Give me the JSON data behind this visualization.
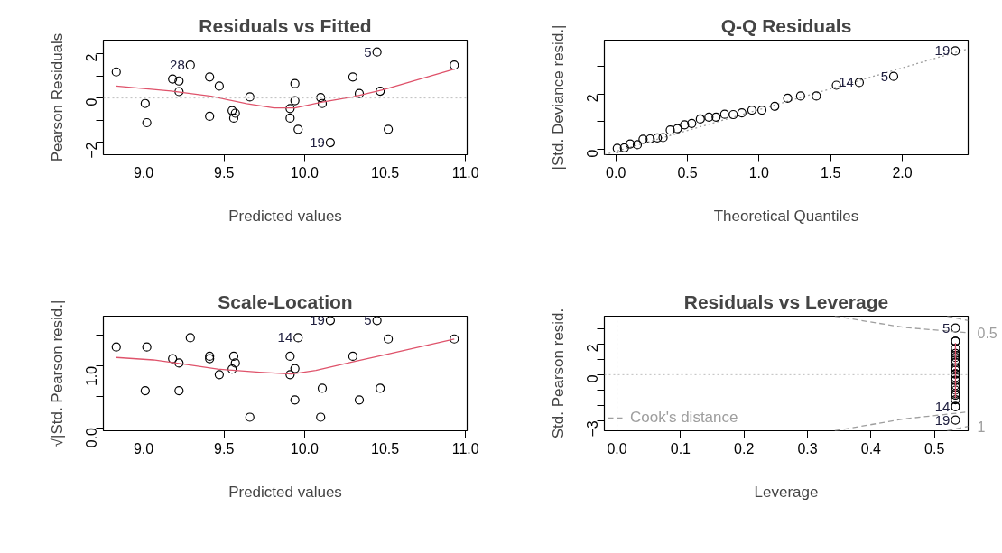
{
  "chart_data": [
    {
      "type": "scatter",
      "title": "Residuals vs Fitted",
      "xlabel": "Predicted values",
      "ylabel": "Pearson Residuals",
      "xlim": [
        8.75,
        11.01
      ],
      "ylim": [
        -2.57,
        2.62
      ],
      "xticks": [
        {
          "value": 9.0,
          "label": "9.0"
        },
        {
          "value": 9.5,
          "label": "9.5"
        },
        {
          "value": 10.0,
          "label": "10.0"
        },
        {
          "value": 10.5,
          "label": "10.5"
        },
        {
          "value": 11.0,
          "label": "11.0"
        }
      ],
      "yticks": [
        -2,
        {
          "value": -1,
          "label": null
        },
        0,
        {
          "value": 1,
          "label": null
        },
        2
      ],
      "series": [
        {
          "type": "scatter",
          "color": "#000000",
          "marker": "circle",
          "x": [
            8.83,
            9.01,
            9.02,
            9.18,
            9.22,
            9.22,
            9.29,
            9.41,
            9.41,
            9.47,
            9.55,
            9.56,
            9.57,
            9.66,
            9.94,
            9.94,
            9.91,
            9.91,
            9.96,
            10.1,
            10.11,
            10.16,
            10.3,
            10.34,
            10.45,
            10.47,
            10.52,
            10.93
          ],
          "values": [
            1.18,
            -0.25,
            -1.12,
            0.86,
            0.77,
            0.29,
            1.49,
            0.95,
            -0.83,
            0.54,
            -0.57,
            -0.91,
            -0.69,
            0.05,
            0.65,
            -0.12,
            -0.48,
            -0.91,
            -1.42,
            0.02,
            -0.25,
            -2.02,
            0.95,
            0.2,
            2.08,
            0.31,
            -1.42,
            1.49
          ]
        },
        {
          "type": "line",
          "color": "#df536b",
          "line_style": "solid",
          "x": [
            8.83,
            9.17,
            9.42,
            9.64,
            9.81,
            9.94,
            10.11,
            10.3,
            10.49,
            10.93
          ],
          "values": [
            0.54,
            0.32,
            0.08,
            -0.26,
            -0.45,
            -0.45,
            -0.18,
            0.05,
            0.38,
            1.31
          ]
        }
      ],
      "ref_lines": [
        {
          "axis": "y",
          "value": 0,
          "color": "#bebebe",
          "line_style": "dotted"
        }
      ],
      "annotations": [
        {
          "text": "28",
          "x": 9.29,
          "y": 1.49
        },
        {
          "text": "5",
          "x": 10.45,
          "y": 2.08
        },
        {
          "text": "19",
          "x": 10.16,
          "y": -2.02
        }
      ]
    },
    {
      "type": "scatter",
      "title": "Q-Q Residuals",
      "xlabel": "Theoretical Quantiles",
      "ylabel": "|Std. Deviance resid.|",
      "xlim": [
        -0.08,
        2.46
      ],
      "ylim": [
        -0.19,
        3.95
      ],
      "xticks": [
        {
          "value": 0.0,
          "label": "0.0"
        },
        {
          "value": 0.5,
          "label": "0.5"
        },
        {
          "value": 1.0,
          "label": "1.0"
        },
        {
          "value": 1.5,
          "label": "1.5"
        },
        {
          "value": 2.0,
          "label": "2.0"
        }
      ],
      "yticks": [
        0,
        {
          "value": 1,
          "label": null
        },
        2,
        {
          "value": 3,
          "label": null
        }
      ],
      "series": [
        {
          "type": "line",
          "color": "#9e9e9e",
          "line_style": "dotted",
          "x": [
            -0.08,
            2.46
          ],
          "values": [
            -0.19,
            3.64
          ]
        },
        {
          "type": "scatter",
          "color": "#000000",
          "marker": "circle",
          "x": [
            0.01,
            0.06,
            0.1,
            0.15,
            0.19,
            0.24,
            0.29,
            0.33,
            0.38,
            0.43,
            0.48,
            0.53,
            0.59,
            0.65,
            0.7,
            0.76,
            0.82,
            0.88,
            0.95,
            1.02,
            1.11,
            1.2,
            1.29,
            1.4,
            1.54,
            1.7,
            1.94,
            2.37
          ],
          "values": [
            0.04,
            0.06,
            0.2,
            0.17,
            0.37,
            0.38,
            0.42,
            0.43,
            0.7,
            0.75,
            0.89,
            0.94,
            1.1,
            1.17,
            1.17,
            1.27,
            1.26,
            1.32,
            1.42,
            1.42,
            1.56,
            1.85,
            1.93,
            1.93,
            2.32,
            2.42,
            2.64,
            3.56
          ]
        }
      ],
      "annotations": [
        {
          "text": "14",
          "x": 1.7,
          "y": 2.42
        },
        {
          "text": "5",
          "x": 1.94,
          "y": 2.64
        },
        {
          "text": "19",
          "x": 2.37,
          "y": 3.56
        }
      ]
    },
    {
      "type": "scatter",
      "title": "Scale-Location",
      "xlabel": "Predicted values",
      "ylabel": "√|Std. Pearson resid.|",
      "xlim": [
        8.75,
        11.01
      ],
      "ylim": [
        -0.05,
        1.81
      ],
      "xticks": [
        {
          "value": 9.0,
          "label": "9.0"
        },
        {
          "value": 9.5,
          "label": "9.5"
        },
        {
          "value": 10.0,
          "label": "10.0"
        },
        {
          "value": 10.5,
          "label": "10.5"
        },
        {
          "value": 11.0,
          "label": "11.0"
        }
      ],
      "yticks": [
        {
          "value": 0.0,
          "label": "0.0"
        },
        {
          "value": 0.5,
          "label": null
        },
        {
          "value": 1.0,
          "label": "1.0"
        },
        {
          "value": 1.5,
          "label": null
        }
      ],
      "series": [
        {
          "type": "scatter",
          "color": "#000000",
          "marker": "circle",
          "x": [
            8.83,
            9.02,
            9.01,
            9.18,
            9.22,
            9.22,
            9.29,
            9.41,
            9.41,
            9.47,
            9.55,
            9.56,
            9.57,
            9.66,
            9.91,
            9.91,
            9.94,
            9.94,
            9.96,
            10.1,
            10.11,
            10.16,
            10.3,
            10.34,
            10.45,
            10.47,
            10.52,
            10.93
          ],
          "values": [
            1.31,
            1.31,
            0.6,
            1.12,
            1.05,
            0.6,
            1.46,
            1.16,
            1.12,
            0.86,
            0.95,
            1.16,
            1.05,
            0.17,
            1.16,
            0.86,
            0.96,
            0.45,
            1.46,
            0.17,
            0.64,
            1.74,
            1.16,
            0.45,
            1.74,
            0.64,
            1.44,
            1.44
          ]
        },
        {
          "type": "line",
          "color": "#df536b",
          "line_style": "solid",
          "x": [
            8.83,
            9.06,
            9.23,
            9.46,
            9.72,
            9.92,
            10.07,
            10.3,
            10.49,
            10.93
          ],
          "values": [
            1.14,
            1.1,
            1.04,
            0.95,
            0.9,
            0.87,
            0.93,
            1.07,
            1.18,
            1.44
          ]
        }
      ],
      "annotations": [
        {
          "text": "14",
          "x": 9.96,
          "y": 1.46
        },
        {
          "text": "19",
          "x": 10.16,
          "y": 1.74
        },
        {
          "text": "5",
          "x": 10.45,
          "y": 1.74
        }
      ]
    },
    {
      "type": "scatter",
      "title": "Residuals vs Leverage",
      "xlabel": "Leverage",
      "ylabel": "Std. Pearson resid.",
      "xlim": [
        -0.02,
        0.553
      ],
      "ylim": [
        -3.66,
        3.82
      ],
      "xticks": [
        {
          "value": 0.0,
          "label": "0.0"
        },
        {
          "value": 0.1,
          "label": "0.1"
        },
        {
          "value": 0.2,
          "label": "0.2"
        },
        {
          "value": 0.3,
          "label": "0.3"
        },
        {
          "value": 0.4,
          "label": "0.4"
        },
        {
          "value": 0.5,
          "label": "0.5"
        }
      ],
      "yticks": [
        -3,
        {
          "value": -2,
          "label": null
        },
        {
          "value": -1,
          "label": null
        },
        0,
        {
          "value": 1,
          "label": null
        },
        2,
        {
          "value": 3,
          "label": null
        }
      ],
      "series": [
        {
          "type": "scatter",
          "color": "#000000",
          "marker": "circle",
          "x": [
            0.533,
            0.533,
            0.533,
            0.533,
            0.533,
            0.533,
            0.533,
            0.533,
            0.533,
            0.533,
            0.533,
            0.533,
            0.533,
            0.533,
            0.533,
            0.533,
            0.533,
            0.533,
            0.533,
            0.533,
            0.533,
            0.533,
            0.533,
            0.533,
            0.533,
            0.533,
            0.533,
            0.533
          ],
          "values": [
            1.73,
            -0.37,
            -1.64,
            1.26,
            1.13,
            0.42,
            2.18,
            1.39,
            -1.22,
            0.79,
            -0.83,
            -1.33,
            -1.01,
            0.07,
            0.95,
            -0.18,
            -0.7,
            -1.33,
            -2.08,
            0.03,
            -0.37,
            -2.96,
            1.39,
            0.29,
            3.05,
            0.45,
            -2.08,
            2.18
          ]
        },
        {
          "type": "line",
          "color": "#df536b",
          "line_style": "solid",
          "x": [
            0.533,
            0.533
          ],
          "values": [
            2.07,
            -1.53
          ]
        },
        {
          "type": "line",
          "name": "Cook's distance",
          "color": "#9e9e9e",
          "line_style": "dashed",
          "x": [
            0.343,
            0.453,
            0.553
          ],
          "values": [
            3.82,
            3.08,
            2.74
          ]
        },
        {
          "type": "line",
          "color": "#9e9e9e",
          "line_style": "dashed",
          "x": [
            0.343,
            0.453,
            0.553
          ],
          "values": [
            -3.66,
            -2.88,
            -2.43
          ]
        },
        {
          "type": "line",
          "color": "#9e9e9e",
          "line_style": "dashed",
          "x": [
            0.52,
            0.553
          ],
          "values": [
            3.82,
            3.53
          ]
        },
        {
          "type": "line",
          "color": "#9e9e9e",
          "line_style": "dashed",
          "x": [
            0.52,
            0.553
          ],
          "values": [
            -3.66,
            -3.37
          ]
        }
      ],
      "ref_lines": [
        {
          "axis": "y",
          "value": 0,
          "color": "#bebebe",
          "line_style": "dotted"
        },
        {
          "axis": "x",
          "value": 0,
          "color": "#bebebe",
          "line_style": "dotted"
        }
      ],
      "legend": "bottom left",
      "annotations": [
        {
          "text": "5",
          "x": 0.533,
          "y": 3.05
        },
        {
          "text": "14",
          "x": 0.533,
          "y": -2.08
        },
        {
          "text": "19",
          "x": 0.533,
          "y": -2.96
        },
        {
          "text": "0.5",
          "x": 0.553,
          "y": 2.74
        },
        {
          "text": "1",
          "x": 0.553,
          "y": -3.37
        }
      ]
    }
  ]
}
